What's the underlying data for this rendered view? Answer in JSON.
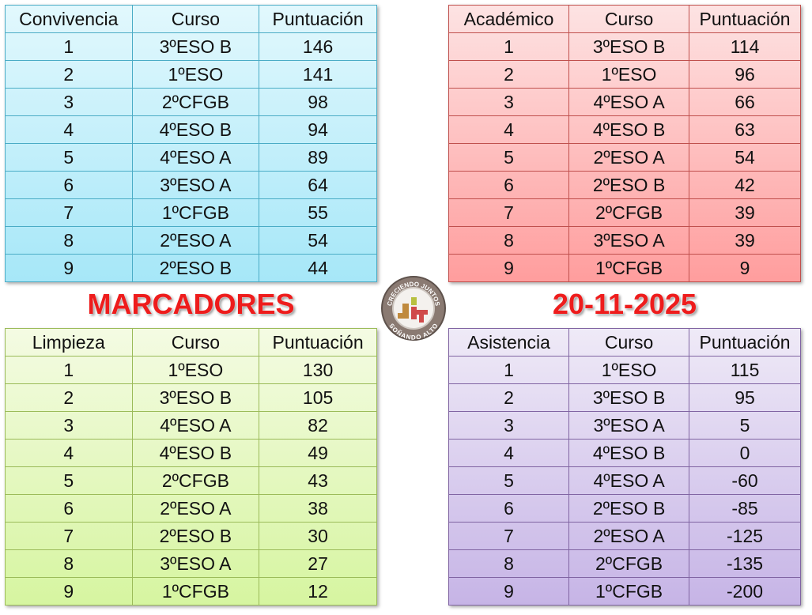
{
  "title": "MARCADORES",
  "date": "20-11-2025",
  "logo": {
    "top_text": "CRECIENDO JUNTOS",
    "bottom_text": "SOÑANDO ALTO"
  },
  "tables": {
    "convivencia": {
      "headers": [
        "Convivencia",
        "Curso",
        "Puntuación"
      ],
      "rows": [
        [
          "1",
          "3ºESO B",
          "146"
        ],
        [
          "2",
          "1ºESO",
          "141"
        ],
        [
          "3",
          "2ºCFGB",
          "98"
        ],
        [
          "4",
          "4ºESO B",
          "94"
        ],
        [
          "5",
          "4ºESO A",
          "89"
        ],
        [
          "6",
          "3ºESO A",
          "64"
        ],
        [
          "7",
          "1ºCFGB",
          "55"
        ],
        [
          "8",
          "2ºESO A",
          "54"
        ],
        [
          "9",
          "2ºESO B",
          "44"
        ]
      ]
    },
    "academico": {
      "headers": [
        "Académico",
        "Curso",
        "Puntuación"
      ],
      "rows": [
        [
          "1",
          "3ºESO B",
          "114"
        ],
        [
          "2",
          "1ºESO",
          "96"
        ],
        [
          "3",
          "4ºESO A",
          "66"
        ],
        [
          "4",
          "4ºESO B",
          "63"
        ],
        [
          "5",
          "2ºESO A",
          "54"
        ],
        [
          "6",
          "2ºESO B",
          "42"
        ],
        [
          "7",
          "2ºCFGB",
          "39"
        ],
        [
          "8",
          "3ºESO A",
          "39"
        ],
        [
          "9",
          "1ºCFGB",
          "9"
        ]
      ]
    },
    "limpieza": {
      "headers": [
        "Limpieza",
        "Curso",
        "Puntuación"
      ],
      "rows": [
        [
          "1",
          "1ºESO",
          "130"
        ],
        [
          "2",
          "3ºESO B",
          "105"
        ],
        [
          "3",
          "4ºESO A",
          "82"
        ],
        [
          "4",
          "4ºESO B",
          "49"
        ],
        [
          "5",
          "2ºCFGB",
          "43"
        ],
        [
          "6",
          "2ºESO A",
          "38"
        ],
        [
          "7",
          "2ºESO B",
          "30"
        ],
        [
          "8",
          "3ºESO A",
          "27"
        ],
        [
          "9",
          "1ºCFGB",
          "12"
        ]
      ]
    },
    "asistencia": {
      "headers": [
        "Asistencia",
        "Curso",
        "Puntuación"
      ],
      "rows": [
        [
          "1",
          "1ºESO",
          "115"
        ],
        [
          "2",
          "3ºESO B",
          "95"
        ],
        [
          "3",
          "3ºESO A",
          "5"
        ],
        [
          "4",
          "4ºESO B",
          "0"
        ],
        [
          "5",
          "4ºESO A",
          "-60"
        ],
        [
          "6",
          "2ºESO B",
          "-85"
        ],
        [
          "7",
          "2ºESO A",
          "-125"
        ],
        [
          "8",
          "2ºCFGB",
          "-135"
        ],
        [
          "9",
          "1ºCFGB",
          "-200"
        ]
      ]
    }
  }
}
